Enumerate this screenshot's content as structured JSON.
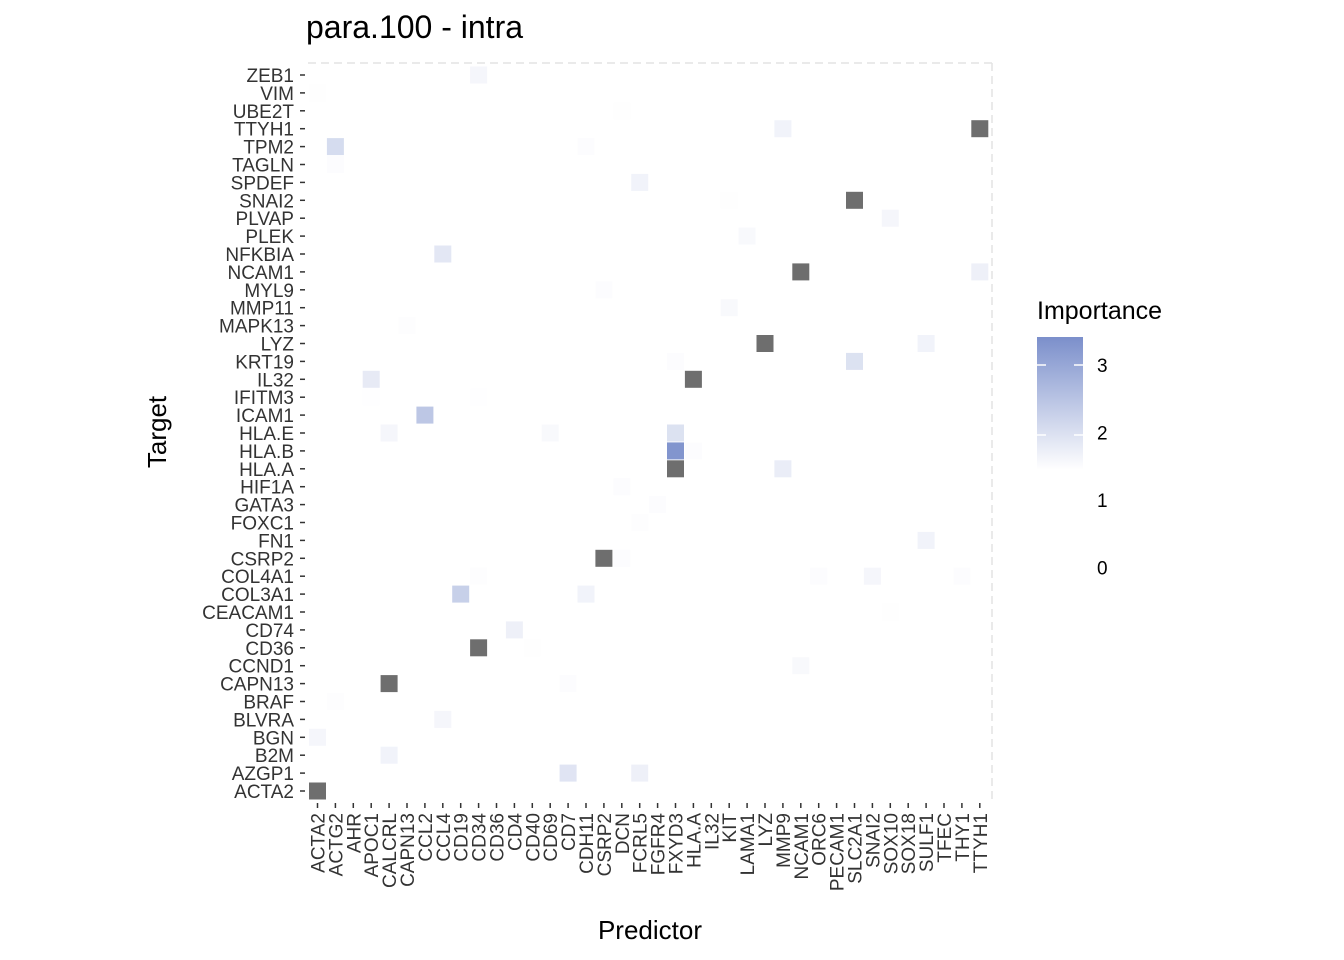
{
  "chart_data": {
    "type": "heatmap",
    "title": "para.100 - intra",
    "xlabel": "Predictor",
    "ylabel": "Target",
    "x_categories": [
      "ACTA2",
      "ACTG2",
      "AHR",
      "APOC1",
      "CALCRL",
      "CAPN13",
      "CCL2",
      "CCL4",
      "CD19",
      "CD34",
      "CD36",
      "CD4",
      "CD40",
      "CD69",
      "CD7",
      "CDH11",
      "CSRP2",
      "DCN",
      "FCRL5",
      "FGFR4",
      "FXYD3",
      "HLA.A",
      "IL32",
      "KIT",
      "LAMA1",
      "LYZ",
      "MMP9",
      "NCAM1",
      "ORC6",
      "PECAM1",
      "SLC2A1",
      "SNAI2",
      "SOX10",
      "SOX18",
      "SULF1",
      "TFEC",
      "THY1",
      "TTYH1"
    ],
    "y_categories": [
      "ACTA2",
      "AZGP1",
      "B2M",
      "BGN",
      "BLVRA",
      "BRAF",
      "CAPN13",
      "CCND1",
      "CD36",
      "CD74",
      "CEACAM1",
      "COL3A1",
      "COL4A1",
      "CSRP2",
      "FN1",
      "FOXC1",
      "GATA3",
      "HIF1A",
      "HLA.A",
      "HLA.B",
      "HLA.E",
      "ICAM1",
      "IFITM3",
      "IL32",
      "KRT19",
      "LYZ",
      "MAPK13",
      "MMP11",
      "MYL9",
      "NCAM1",
      "NFKBIA",
      "PLEK",
      "PLVAP",
      "SNAI2",
      "SPDEF",
      "TAGLN",
      "TPM2",
      "TTYH1",
      "UBE2T",
      "VIM",
      "ZEB1"
    ],
    "legend": {
      "title": "Importance",
      "ticks": [
        3,
        2,
        1,
        0
      ],
      "range": [
        1.5,
        3.4
      ],
      "low_color": "#ffffff",
      "high_color": "#7b8fcb",
      "na_color": "#6e6e6e",
      "placement": "right"
    },
    "cells": [
      {
        "x": "CD34",
        "y": "ZEB1",
        "value": 1.65
      },
      {
        "x": "ACTA2",
        "y": "VIM",
        "value": 1.52
      },
      {
        "x": "DCN",
        "y": "UBE2T",
        "value": 1.52
      },
      {
        "x": "MMP9",
        "y": "TTYH1",
        "value": 1.7
      },
      {
        "x": "TTYH1",
        "y": "TTYH1",
        "value": null
      },
      {
        "x": "ACTG2",
        "y": "TPM2",
        "value": 2.1
      },
      {
        "x": "CDH11",
        "y": "TPM2",
        "value": 1.55
      },
      {
        "x": "ACTG2",
        "y": "TAGLN",
        "value": 1.55
      },
      {
        "x": "FCRL5",
        "y": "SPDEF",
        "value": 1.7
      },
      {
        "x": "SLC2A1",
        "y": "SNAI2",
        "value": null
      },
      {
        "x": "KIT",
        "y": "SNAI2",
        "value": 1.52
      },
      {
        "x": "SOX10",
        "y": "PLVAP",
        "value": 1.65
      },
      {
        "x": "LAMA1",
        "y": "PLEK",
        "value": 1.6
      },
      {
        "x": "CCL4",
        "y": "NFKBIA",
        "value": 1.9
      },
      {
        "x": "NCAM1",
        "y": "NCAM1",
        "value": null
      },
      {
        "x": "TTYH1",
        "y": "NCAM1",
        "value": 1.75
      },
      {
        "x": "CSRP2",
        "y": "MYL9",
        "value": 1.55
      },
      {
        "x": "KIT",
        "y": "MMP11",
        "value": 1.6
      },
      {
        "x": "CAPN13",
        "y": "MAPK13",
        "value": 1.53
      },
      {
        "x": "LYZ",
        "y": "LYZ",
        "value": null
      },
      {
        "x": "SULF1",
        "y": "LYZ",
        "value": 1.7
      },
      {
        "x": "FXYD3",
        "y": "KRT19",
        "value": 1.55
      },
      {
        "x": "SLC2A1",
        "y": "KRT19",
        "value": 2.0
      },
      {
        "x": "HLA.A",
        "y": "IL32",
        "value": null
      },
      {
        "x": "APOC1",
        "y": "IL32",
        "value": 1.85
      },
      {
        "x": "APOC1",
        "y": "IFITM3",
        "value": 1.51
      },
      {
        "x": "CD34",
        "y": "IFITM3",
        "value": 1.51
      },
      {
        "x": "CCL2",
        "y": "ICAM1",
        "value": 2.45
      },
      {
        "x": "CALCRL",
        "y": "HLA.E",
        "value": 1.65
      },
      {
        "x": "CD69",
        "y": "HLA.E",
        "value": 1.6
      },
      {
        "x": "FXYD3",
        "y": "HLA.E",
        "value": 2.0
      },
      {
        "x": "FXYD3",
        "y": "HLA.B",
        "value": 3.3
      },
      {
        "x": "HLA.A",
        "y": "HLA.B",
        "value": 1.55
      },
      {
        "x": "FXYD3",
        "y": "HLA.A",
        "value": null
      },
      {
        "x": "MMP9",
        "y": "HLA.A",
        "value": 1.8
      },
      {
        "x": "DCN",
        "y": "HIF1A",
        "value": 1.55
      },
      {
        "x": "FGFR4",
        "y": "GATA3",
        "value": 1.55
      },
      {
        "x": "FCRL5",
        "y": "FOXC1",
        "value": 1.53
      },
      {
        "x": "SULF1",
        "y": "FN1",
        "value": 1.7
      },
      {
        "x": "CSRP2",
        "y": "CSRP2",
        "value": null
      },
      {
        "x": "DCN",
        "y": "CSRP2",
        "value": 1.55
      },
      {
        "x": "CD34",
        "y": "COL4A1",
        "value": 1.53
      },
      {
        "x": "ORC6",
        "y": "COL4A1",
        "value": 1.55
      },
      {
        "x": "SNAI2",
        "y": "COL4A1",
        "value": 1.65
      },
      {
        "x": "THY1",
        "y": "COL4A1",
        "value": 1.55
      },
      {
        "x": "CD19",
        "y": "COL3A1",
        "value": 2.3
      },
      {
        "x": "CDH11",
        "y": "COL3A1",
        "value": 1.7
      },
      {
        "x": "SOX10",
        "y": "CEACAM1",
        "value": 1.52
      },
      {
        "x": "CD4",
        "y": "CD74",
        "value": 1.75
      },
      {
        "x": "CD34",
        "y": "CD36",
        "value": null
      },
      {
        "x": "CD40",
        "y": "CD36",
        "value": 1.52
      },
      {
        "x": "NCAM1",
        "y": "CCND1",
        "value": 1.6
      },
      {
        "x": "CALCRL",
        "y": "CAPN13",
        "value": null
      },
      {
        "x": "CD7",
        "y": "CAPN13",
        "value": 1.55
      },
      {
        "x": "ACTG2",
        "y": "BRAF",
        "value": 1.53
      },
      {
        "x": "CCL4",
        "y": "BLVRA",
        "value": 1.65
      },
      {
        "x": "ACTA2",
        "y": "BGN",
        "value": 1.65
      },
      {
        "x": "CALCRL",
        "y": "B2M",
        "value": 1.7
      },
      {
        "x": "CD7",
        "y": "AZGP1",
        "value": 1.95
      },
      {
        "x": "FCRL5",
        "y": "AZGP1",
        "value": 1.75
      },
      {
        "x": "ACTA2",
        "y": "ACTA2",
        "value": null
      }
    ]
  }
}
